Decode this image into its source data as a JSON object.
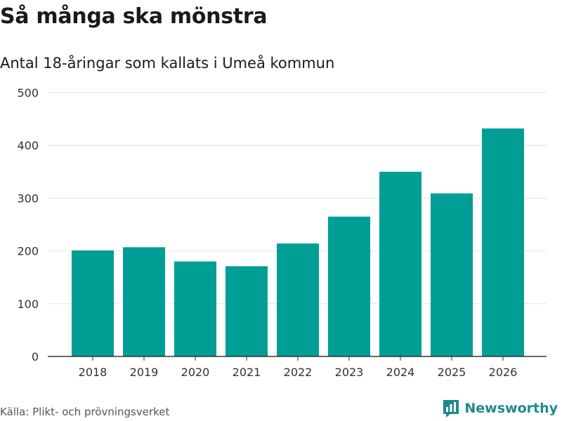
{
  "chart_data": {
    "type": "bar",
    "title": "Så många ska mönstra",
    "subtitle": "Antal 18-åringar som kallats i Umeå kommun",
    "categories": [
      "2018",
      "2019",
      "2020",
      "2021",
      "2022",
      "2023",
      "2024",
      "2025",
      "2026"
    ],
    "values": [
      201,
      207,
      180,
      171,
      214,
      265,
      350,
      309,
      432
    ],
    "xlabel": "",
    "ylabel": "",
    "ylim": [
      0,
      500
    ],
    "yticks": [
      0,
      100,
      200,
      300,
      400,
      500
    ],
    "grid": true,
    "bar_color": "#009e94"
  },
  "footer": {
    "source": "Källa: Plikt- och prövningsverket",
    "brand": "Newsworthy",
    "brand_icon": "newsworthy-logo-icon",
    "brand_color": "#1f8a8a"
  }
}
